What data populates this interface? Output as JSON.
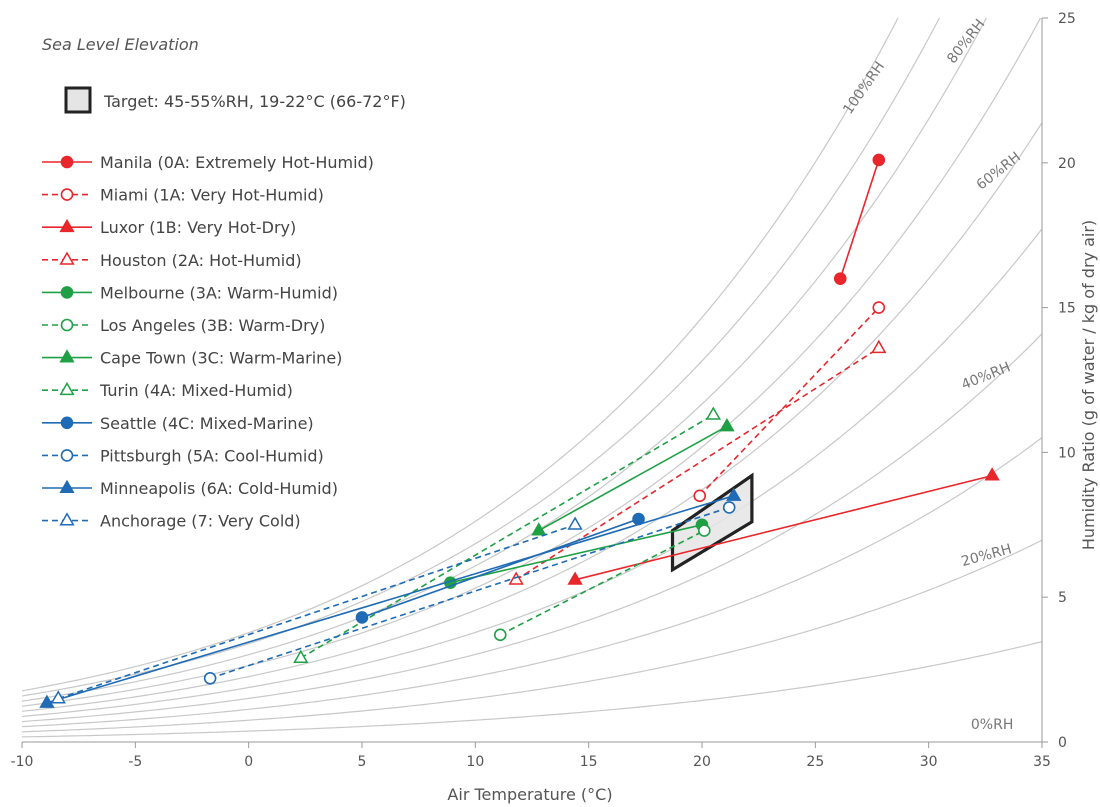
{
  "chart_data": {
    "type": "scatter",
    "annotation": "Sea Level Elevation",
    "xlabel": "Air Temperature (°C)",
    "ylabel": "Humidity Ratio (g of water / kg of dry air)",
    "xlim": [
      -10,
      35
    ],
    "ylim": [
      0,
      25
    ],
    "x_ticks": [
      "-10",
      "-5",
      "0",
      "5",
      "10",
      "15",
      "20",
      "25",
      "30",
      "35"
    ],
    "y_ticks": [
      "0",
      "5",
      "10",
      "15",
      "20",
      "25"
    ],
    "rh_curves": [
      10,
      20,
      30,
      40,
      50,
      60,
      70,
      80,
      90,
      100
    ],
    "rh_labels": [
      {
        "text": "0%RH",
        "x": 32.8,
        "y": 0.45,
        "angle": 0
      },
      {
        "text": "20%RH",
        "x": 32.6,
        "y": 6.3,
        "angle": -15
      },
      {
        "text": "40%RH",
        "x": 32.6,
        "y": 12.5,
        "angle": -22
      },
      {
        "text": "60%RH",
        "x": 33.2,
        "y": 19.6,
        "angle": -38
      },
      {
        "text": "80%RH",
        "x": 31.8,
        "y": 24.1,
        "angle": -52
      },
      {
        "text": "100%RH",
        "x": 27.3,
        "y": 22.5,
        "angle": -55
      }
    ],
    "target": {
      "label": "Target: 45-55%RH, 19-22°C (66-72°F)",
      "polygon": [
        [
          18.7,
          5.95
        ],
        [
          22.2,
          7.6
        ],
        [
          22.2,
          9.2
        ],
        [
          18.7,
          7.3
        ]
      ],
      "fill": "#e5e5e5",
      "stroke": "#222222"
    },
    "series": [
      {
        "name": "Manila (0A: Extremely Hot-Humid)",
        "color": "#e8262b",
        "marker": "circle",
        "filled": true,
        "dashed": false,
        "x": [
          26.1,
          27.8
        ],
        "y": [
          16.0,
          20.1
        ]
      },
      {
        "name": "Miami (1A: Very Hot-Humid)",
        "color": "#e8262b",
        "marker": "circle",
        "filled": false,
        "dashed": true,
        "x": [
          19.9,
          27.8
        ],
        "y": [
          8.5,
          15.0
        ]
      },
      {
        "name": "Luxor (1B: Very Hot-Dry)",
        "color": "#e8262b",
        "marker": "triangle",
        "filled": true,
        "dashed": false,
        "x": [
          14.4,
          32.8
        ],
        "y": [
          5.6,
          9.2
        ]
      },
      {
        "name": "Houston (2A: Hot-Humid)",
        "color": "#e8262b",
        "marker": "triangle",
        "filled": false,
        "dashed": true,
        "x": [
          11.8,
          27.8
        ],
        "y": [
          5.6,
          13.6
        ]
      },
      {
        "name": "Melbourne (3A: Warm-Humid)",
        "color": "#1fa045",
        "marker": "circle",
        "filled": true,
        "dashed": false,
        "x": [
          8.9,
          20.0
        ],
        "y": [
          5.5,
          7.5
        ]
      },
      {
        "name": "Los Angeles (3B: Warm-Dry)",
        "color": "#1fa045",
        "marker": "circle",
        "filled": false,
        "dashed": true,
        "x": [
          11.1,
          20.1
        ],
        "y": [
          3.7,
          7.3
        ]
      },
      {
        "name": "Cape Town (3C: Warm-Marine)",
        "color": "#1fa045",
        "marker": "triangle",
        "filled": true,
        "dashed": false,
        "x": [
          12.8,
          21.1
        ],
        "y": [
          7.3,
          10.9
        ]
      },
      {
        "name": "Turin (4A: Mixed-Humid)",
        "color": "#1fa045",
        "marker": "triangle",
        "filled": false,
        "dashed": true,
        "x": [
          2.3,
          20.5
        ],
        "y": [
          2.9,
          11.3
        ]
      },
      {
        "name": "Seattle (4C: Mixed-Marine)",
        "color": "#1f6bb5",
        "marker": "circle",
        "filled": true,
        "dashed": false,
        "x": [
          5.0,
          17.2
        ],
        "y": [
          4.3,
          7.7
        ]
      },
      {
        "name": "Pittsburgh (5A: Cool-Humid)",
        "color": "#1f6bb5",
        "marker": "circle",
        "filled": false,
        "dashed": true,
        "x": [
          -1.7,
          21.2
        ],
        "y": [
          2.2,
          8.1
        ]
      },
      {
        "name": "Minneapolis (6A: Cold-Humid)",
        "color": "#1f6bb5",
        "marker": "triangle",
        "filled": true,
        "dashed": false,
        "x": [
          -8.9,
          21.4
        ],
        "y": [
          1.35,
          8.5
        ]
      },
      {
        "name": "Anchorage (7: Very Cold)",
        "color": "#1f6bb5",
        "marker": "triangle",
        "filled": false,
        "dashed": true,
        "x": [
          -8.4,
          14.4
        ],
        "y": [
          1.5,
          7.5
        ]
      }
    ],
    "legend": "top-left",
    "grid": false
  }
}
